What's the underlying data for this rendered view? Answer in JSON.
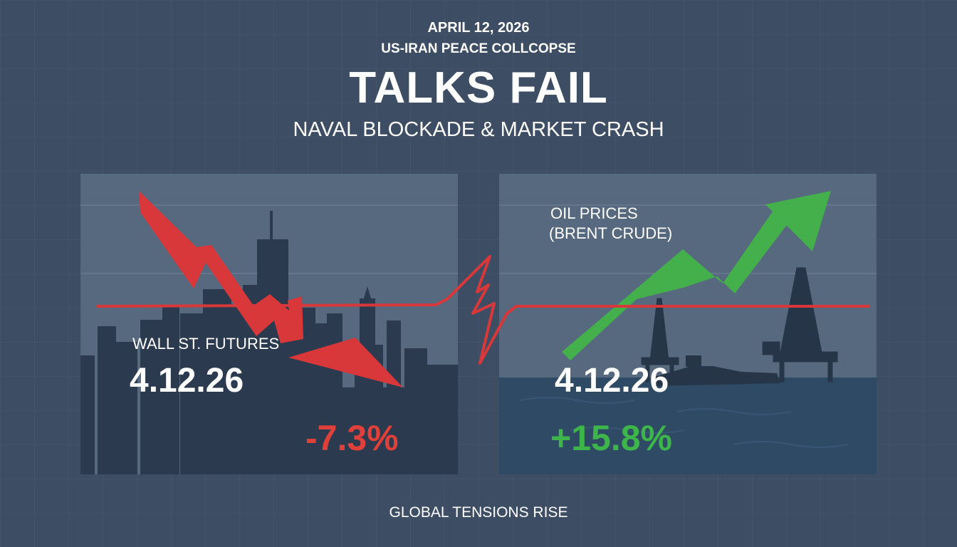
{
  "header": {
    "date": "APRIL 12, 2026",
    "kicker": "US-IRAN PEACE COLLCOPSE",
    "headline": "TALKS FAIL",
    "subhead": "NAVAL BLOCKADE & MARKET CRASH"
  },
  "left_panel": {
    "label": "WALL ST. FUTURES",
    "date": "4.12.26",
    "change": "-7.3%",
    "change_color": "#e0403a",
    "trend_icon": "down-arrow-icon"
  },
  "right_panel": {
    "label_line1": "OIL PRICES",
    "label_line2": "(BRENT CRUDE)",
    "date": "4.12.26",
    "change": "+15.8%",
    "change_color": "#3db54a",
    "trend_icon": "up-arrow-icon"
  },
  "footer": {
    "text": "GLOBAL TENSIONS RISE"
  },
  "colors": {
    "background": "#3d4d63",
    "panel": "#56697f",
    "skyline": "#2b3a4e",
    "sea": "#2e4a64",
    "down_arrow": "#d9383a",
    "up_arrow": "#43b04b",
    "fracture_line": "#d9383a"
  }
}
